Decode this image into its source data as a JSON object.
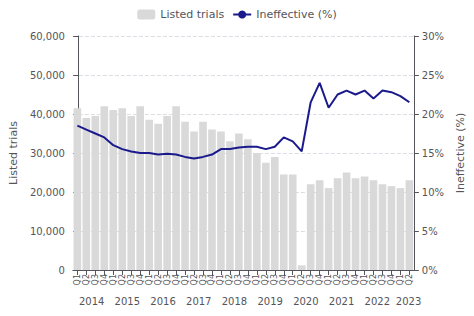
{
  "chart_data": {
    "type": "bar",
    "categories": [
      "Q1",
      "Q2",
      "Q3",
      "Q4",
      "Q1",
      "Q2",
      "Q3",
      "Q4",
      "Q1",
      "Q2",
      "Q3",
      "Q4",
      "Q1",
      "Q2",
      "Q3",
      "Q4",
      "Q1",
      "Q2",
      "Q3",
      "Q4",
      "Q1",
      "Q2",
      "Q3",
      "Q4",
      "Q1",
      "Q2",
      "Q3",
      "Q4",
      "Q1",
      "Q2",
      "Q3",
      "Q4",
      "Q1",
      "Q2",
      "Q3",
      "Q4",
      "Q1",
      "Q2"
    ],
    "series": [
      {
        "name": "Listed trials",
        "type": "bar",
        "color": "#d9d9d9",
        "values": [
          41500,
          39000,
          39500,
          42000,
          41000,
          41500,
          39500,
          42000,
          38500,
          37500,
          39500,
          42000,
          38000,
          35500,
          38000,
          36000,
          35500,
          33000,
          35000,
          33500,
          30000,
          27500,
          29000,
          24500,
          24500,
          1200,
          22000,
          23000,
          21000,
          23500,
          25000,
          23500,
          24000,
          23000,
          22000,
          21500,
          21000,
          23000
        ]
      },
      {
        "name": "Ineffective (%)",
        "type": "line",
        "axis": "y2",
        "color": "#1a1a8c",
        "values": [
          0.185,
          0.18,
          0.175,
          0.17,
          0.16,
          0.155,
          0.152,
          0.15,
          0.15,
          0.148,
          0.149,
          0.148,
          0.145,
          0.143,
          0.145,
          0.148,
          0.155,
          0.155,
          0.157,
          0.158,
          0.158,
          0.155,
          0.158,
          0.17,
          0.165,
          0.152,
          0.215,
          0.24,
          0.208,
          0.225,
          0.23,
          0.225,
          0.23,
          0.22,
          0.23,
          0.228,
          0.223,
          0.215
        ]
      }
    ],
    "ylabel": "Listed trials",
    "y2label": "Ineffective (%)",
    "ylim": [
      0,
      60000
    ],
    "yticks": [
      0,
      {
        "value": 10000,
        "label": "10,000"
      },
      {
        "value": 20000,
        "label": "20,000"
      },
      {
        "value": 30000,
        "label": "30,000"
      },
      {
        "value": 40000,
        "label": "40,000"
      },
      {
        "value": 50000,
        "label": "50,000"
      },
      {
        "value": 60000,
        "label": "60,000"
      }
    ],
    "y2lim": [
      0,
      0.3
    ],
    "y2ticks": [
      {
        "value": 0.0,
        "label": "0%"
      },
      {
        "value": 0.05,
        "label": "5%"
      },
      {
        "value": 0.1,
        "label": "10%"
      },
      {
        "value": 0.15,
        "label": "15%"
      },
      {
        "value": 0.2,
        "label": "20%"
      },
      {
        "value": 0.25,
        "label": "25%"
      },
      {
        "value": 0.3,
        "label": "30%"
      }
    ],
    "x2lim": [
      -0.6,
      37.6
    ],
    "x2ticks": [
      {
        "value": 1.5,
        "label": "2014"
      },
      {
        "value": 5.5,
        "label": "2015"
      },
      {
        "value": 9.5,
        "label": "2016"
      },
      {
        "value": 13.5,
        "label": "2017"
      },
      {
        "value": 17.5,
        "label": "2018"
      },
      {
        "value": 21.5,
        "label": "2019"
      },
      {
        "value": 25.5,
        "label": "2020"
      },
      {
        "value": 29.5,
        "label": "2021"
      },
      {
        "value": 33.5,
        "label": "2022"
      },
      {
        "value": 37.0,
        "label": "2023"
      }
    ],
    "grid": true,
    "legend": "top"
  }
}
